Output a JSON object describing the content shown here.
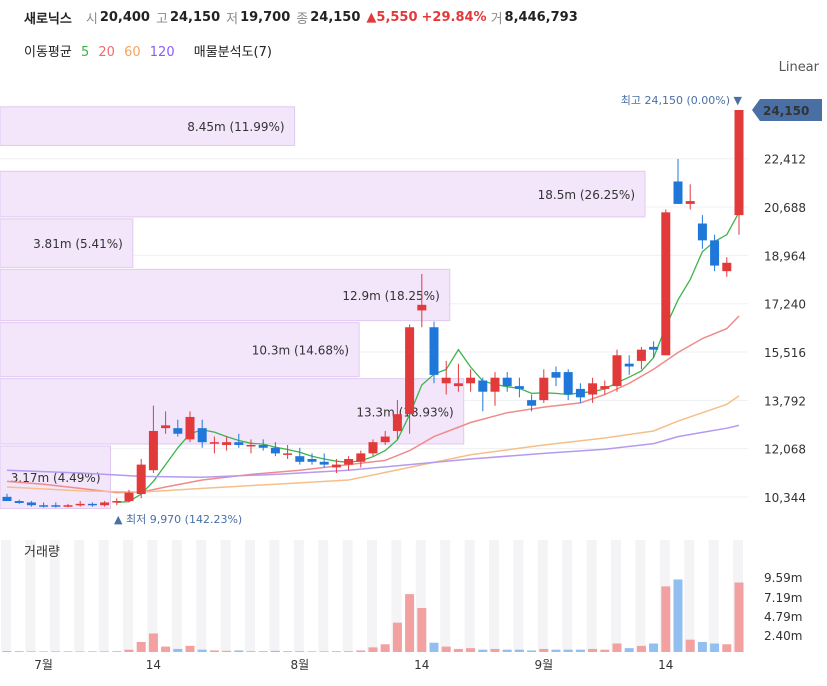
{
  "header": {
    "name": "새로닉스",
    "open_label": "시",
    "open": "20,400",
    "high_label": "고",
    "high": "24,150",
    "low_label": "저",
    "low": "19,700",
    "close_label": "종",
    "close": "24,150",
    "change": "▲5,550",
    "change_pct": "+29.84%",
    "volume_label": "거",
    "volume": "8,446,793"
  },
  "ma_legend": {
    "title": "이동평균",
    "periods": [
      "5",
      "20",
      "60",
      "120"
    ],
    "period_colors": [
      "#3cb44b",
      "#f06c6c",
      "#f5a35c",
      "#8b5cf6"
    ],
    "volume_profile": "매물분석도(7)"
  },
  "scale_label": "Linear",
  "annotations": {
    "high": "최고 24,150 (0.00%) ▼",
    "low": "▲ 최저 9,970 (142.23%)",
    "current_price": "24,150"
  },
  "volume_title": "거래량",
  "chart_data": {
    "type": "candlestick",
    "price_axis": {
      "ticks": [
        "24,150",
        "22,412",
        "20,688",
        "18,964",
        "17,240",
        "15,516",
        "13,792",
        "12,068",
        "10,344"
      ]
    },
    "volume_axis": {
      "ticks": [
        "9.59m",
        "7.19m",
        "4.79m",
        "2.40m"
      ]
    },
    "x_labels": [
      {
        "label": "7월",
        "index": 3
      },
      {
        "label": "14",
        "index": 12
      },
      {
        "label": "8월",
        "index": 24
      },
      {
        "label": "14",
        "index": 34
      },
      {
        "label": "9월",
        "index": 44
      },
      {
        "label": "14",
        "index": 54
      }
    ],
    "volume_profile": [
      {
        "label": "8.45m (11.99%)",
        "low": 22850,
        "high": 24300,
        "value": 8.45
      },
      {
        "label": "18.5m (26.25%)",
        "low": 20300,
        "high": 22000,
        "value": 18.5
      },
      {
        "label": "3.81m (5.41%)",
        "low": 18500,
        "high": 20300,
        "value": 3.81
      },
      {
        "label": "12.9m (18.25%)",
        "low": 16600,
        "high": 18500,
        "value": 12.9
      },
      {
        "label": "10.3m (14.68%)",
        "low": 14600,
        "high": 16600,
        "value": 10.3
      },
      {
        "label": "13.3m (18.93%)",
        "low": 12200,
        "high": 14600,
        "value": 13.3
      },
      {
        "label": "3.17m (4.49%)",
        "low": 9900,
        "high": 12200,
        "value": 3.17
      }
    ],
    "candles": [
      [
        10350,
        10460,
        10200,
        10200
      ],
      [
        10200,
        10250,
        10100,
        10130
      ],
      [
        10150,
        10200,
        10000,
        10050
      ],
      [
        10050,
        10150,
        9970,
        10000
      ],
      [
        10050,
        10150,
        9970,
        10000
      ],
      [
        10020,
        10100,
        9980,
        10050
      ],
      [
        10050,
        10200,
        10000,
        10100
      ],
      [
        10100,
        10150,
        10000,
        10050
      ],
      [
        10050,
        10200,
        10000,
        10150
      ],
      [
        10150,
        10300,
        10050,
        10200
      ],
      [
        10200,
        10600,
        10150,
        10500
      ],
      [
        10450,
        11700,
        10300,
        11500
      ],
      [
        11300,
        13600,
        11200,
        12700
      ],
      [
        12800,
        13400,
        12600,
        12900
      ],
      [
        12800,
        13100,
        12500,
        12600
      ],
      [
        12400,
        13400,
        12300,
        13200
      ],
      [
        12800,
        13100,
        12100,
        12300
      ],
      [
        12300,
        12500,
        11900,
        12300
      ],
      [
        12200,
        12500,
        12000,
        12300
      ],
      [
        12300,
        12600,
        12100,
        12200
      ],
      [
        12200,
        12400,
        11900,
        12200
      ],
      [
        12200,
        12400,
        12000,
        12100
      ],
      [
        12100,
        12300,
        11800,
        11900
      ],
      [
        11900,
        12200,
        11700,
        11900
      ],
      [
        11800,
        12100,
        11500,
        11600
      ],
      [
        11700,
        11900,
        11500,
        11600
      ],
      [
        11600,
        11900,
        11400,
        11500
      ],
      [
        11400,
        11700,
        11200,
        11500
      ],
      [
        11500,
        11800,
        11300,
        11700
      ],
      [
        11600,
        12000,
        11400,
        11900
      ],
      [
        11900,
        12400,
        11800,
        12300
      ],
      [
        12300,
        12700,
        12200,
        12500
      ],
      [
        12700,
        13800,
        12400,
        13300
      ],
      [
        13300,
        16500,
        12600,
        16400
      ],
      [
        17000,
        18300,
        16400,
        17200
      ],
      [
        16400,
        16600,
        14400,
        14700
      ],
      [
        14400,
        15200,
        14000,
        14600
      ],
      [
        14300,
        15100,
        14100,
        14400
      ],
      [
        14400,
        14900,
        14100,
        14600
      ],
      [
        14500,
        14600,
        13400,
        14100
      ],
      [
        14100,
        14800,
        13600,
        14600
      ],
      [
        14600,
        14800,
        14100,
        14300
      ],
      [
        14300,
        14600,
        13900,
        14200
      ],
      [
        13800,
        14000,
        13400,
        13600
      ],
      [
        13800,
        14900,
        13700,
        14600
      ],
      [
        14800,
        15000,
        14300,
        14600
      ],
      [
        14800,
        14900,
        13800,
        14000
      ],
      [
        14200,
        14400,
        13700,
        13900
      ],
      [
        14000,
        14600,
        13700,
        14400
      ],
      [
        14200,
        14500,
        14000,
        14300
      ],
      [
        14300,
        15600,
        14100,
        15400
      ],
      [
        15100,
        15400,
        14700,
        15000
      ],
      [
        15200,
        15700,
        14900,
        15600
      ],
      [
        15700,
        15900,
        15300,
        15600
      ],
      [
        15400,
        20600,
        15400,
        20500
      ],
      [
        21600,
        22400,
        20800,
        20800
      ],
      [
        20800,
        21500,
        20600,
        20900
      ],
      [
        20100,
        20400,
        19200,
        19500
      ],
      [
        19500,
        19700,
        18400,
        18600
      ],
      [
        18400,
        18900,
        18200,
        18700
      ],
      [
        20400,
        24150,
        19700,
        24150
      ]
    ],
    "volumes": [
      0.12,
      0.1,
      0.08,
      0.07,
      0.08,
      0.08,
      0.07,
      0.08,
      0.08,
      0.1,
      0.3,
      1.3,
      2.4,
      0.7,
      0.4,
      0.8,
      0.3,
      0.2,
      0.15,
      0.2,
      0.1,
      0.1,
      0.15,
      0.1,
      0.1,
      0.08,
      0.08,
      0.1,
      0.1,
      0.2,
      0.6,
      1.0,
      3.8,
      7.5,
      5.7,
      1.2,
      0.7,
      0.4,
      0.5,
      0.3,
      0.4,
      0.3,
      0.3,
      0.2,
      0.4,
      0.3,
      0.3,
      0.3,
      0.4,
      0.3,
      1.1,
      0.5,
      0.8,
      1.1,
      8.5,
      9.4,
      1.6,
      1.3,
      1.1,
      1.0,
      9.0
    ],
    "moving_averages": {
      "ma5": [
        [
          9,
          10150
        ],
        [
          10,
          10180
        ],
        [
          11,
          10450
        ],
        [
          12,
          10900
        ],
        [
          13,
          11500
        ],
        [
          14,
          12100
        ],
        [
          15,
          12600
        ],
        [
          16,
          12740
        ],
        [
          17,
          12660
        ],
        [
          18,
          12500
        ],
        [
          19,
          12360
        ],
        [
          20,
          12260
        ],
        [
          21,
          12230
        ],
        [
          22,
          12120
        ],
        [
          23,
          12040
        ],
        [
          24,
          11940
        ],
        [
          25,
          11800
        ],
        [
          26,
          11700
        ],
        [
          27,
          11620
        ],
        [
          28,
          11580
        ],
        [
          29,
          11640
        ],
        [
          30,
          11780
        ],
        [
          31,
          12000
        ],
        [
          32,
          12380
        ],
        [
          33,
          13280
        ],
        [
          34,
          14340
        ],
        [
          35,
          14720
        ],
        [
          36,
          14900
        ],
        [
          37,
          15600
        ],
        [
          38,
          14980
        ],
        [
          39,
          14480
        ],
        [
          40,
          14360
        ],
        [
          41,
          14280
        ],
        [
          42,
          14220
        ],
        [
          43,
          14040
        ],
        [
          44,
          14060
        ],
        [
          45,
          14040
        ],
        [
          46,
          14000
        ],
        [
          47,
          14060
        ],
        [
          48,
          14100
        ],
        [
          49,
          14200
        ],
        [
          50,
          14420
        ],
        [
          51,
          14620
        ],
        [
          52,
          14840
        ],
        [
          53,
          15320
        ],
        [
          54,
          16420
        ],
        [
          55,
          17380
        ],
        [
          56,
          18100
        ],
        [
          57,
          19100
        ],
        [
          58,
          19460
        ],
        [
          59,
          19700
        ],
        [
          60,
          20500
        ]
      ],
      "ma20": [
        [
          0,
          10900
        ],
        [
          3,
          10800
        ],
        [
          6,
          10650
        ],
        [
          9,
          10500
        ],
        [
          11,
          10520
        ],
        [
          13,
          10700
        ],
        [
          16,
          10950
        ],
        [
          20,
          11150
        ],
        [
          24,
          11300
        ],
        [
          28,
          11500
        ],
        [
          31,
          11650
        ],
        [
          33,
          12000
        ],
        [
          35,
          12500
        ],
        [
          38,
          13000
        ],
        [
          41,
          13350
        ],
        [
          44,
          13550
        ],
        [
          47,
          13700
        ],
        [
          49,
          14000
        ],
        [
          51,
          14400
        ],
        [
          53,
          14900
        ],
        [
          55,
          15500
        ],
        [
          57,
          16000
        ],
        [
          59,
          16350
        ],
        [
          60,
          16800
        ]
      ],
      "ma60": [
        [
          0,
          10700
        ],
        [
          6,
          10560
        ],
        [
          11,
          10520
        ],
        [
          16,
          10650
        ],
        [
          22,
          10800
        ],
        [
          28,
          10950
        ],
        [
          33,
          11400
        ],
        [
          38,
          11850
        ],
        [
          44,
          12200
        ],
        [
          49,
          12450
        ],
        [
          53,
          12700
        ],
        [
          55,
          13050
        ],
        [
          57,
          13350
        ],
        [
          59,
          13650
        ],
        [
          60,
          13950
        ]
      ],
      "ma120": [
        [
          0,
          11300
        ],
        [
          6,
          11200
        ],
        [
          11,
          11080
        ],
        [
          16,
          11050
        ],
        [
          22,
          11150
        ],
        [
          28,
          11300
        ],
        [
          33,
          11500
        ],
        [
          38,
          11700
        ],
        [
          44,
          11900
        ],
        [
          49,
          12050
        ],
        [
          53,
          12250
        ],
        [
          55,
          12500
        ],
        [
          57,
          12650
        ],
        [
          59,
          12800
        ],
        [
          60,
          12900
        ]
      ]
    }
  }
}
